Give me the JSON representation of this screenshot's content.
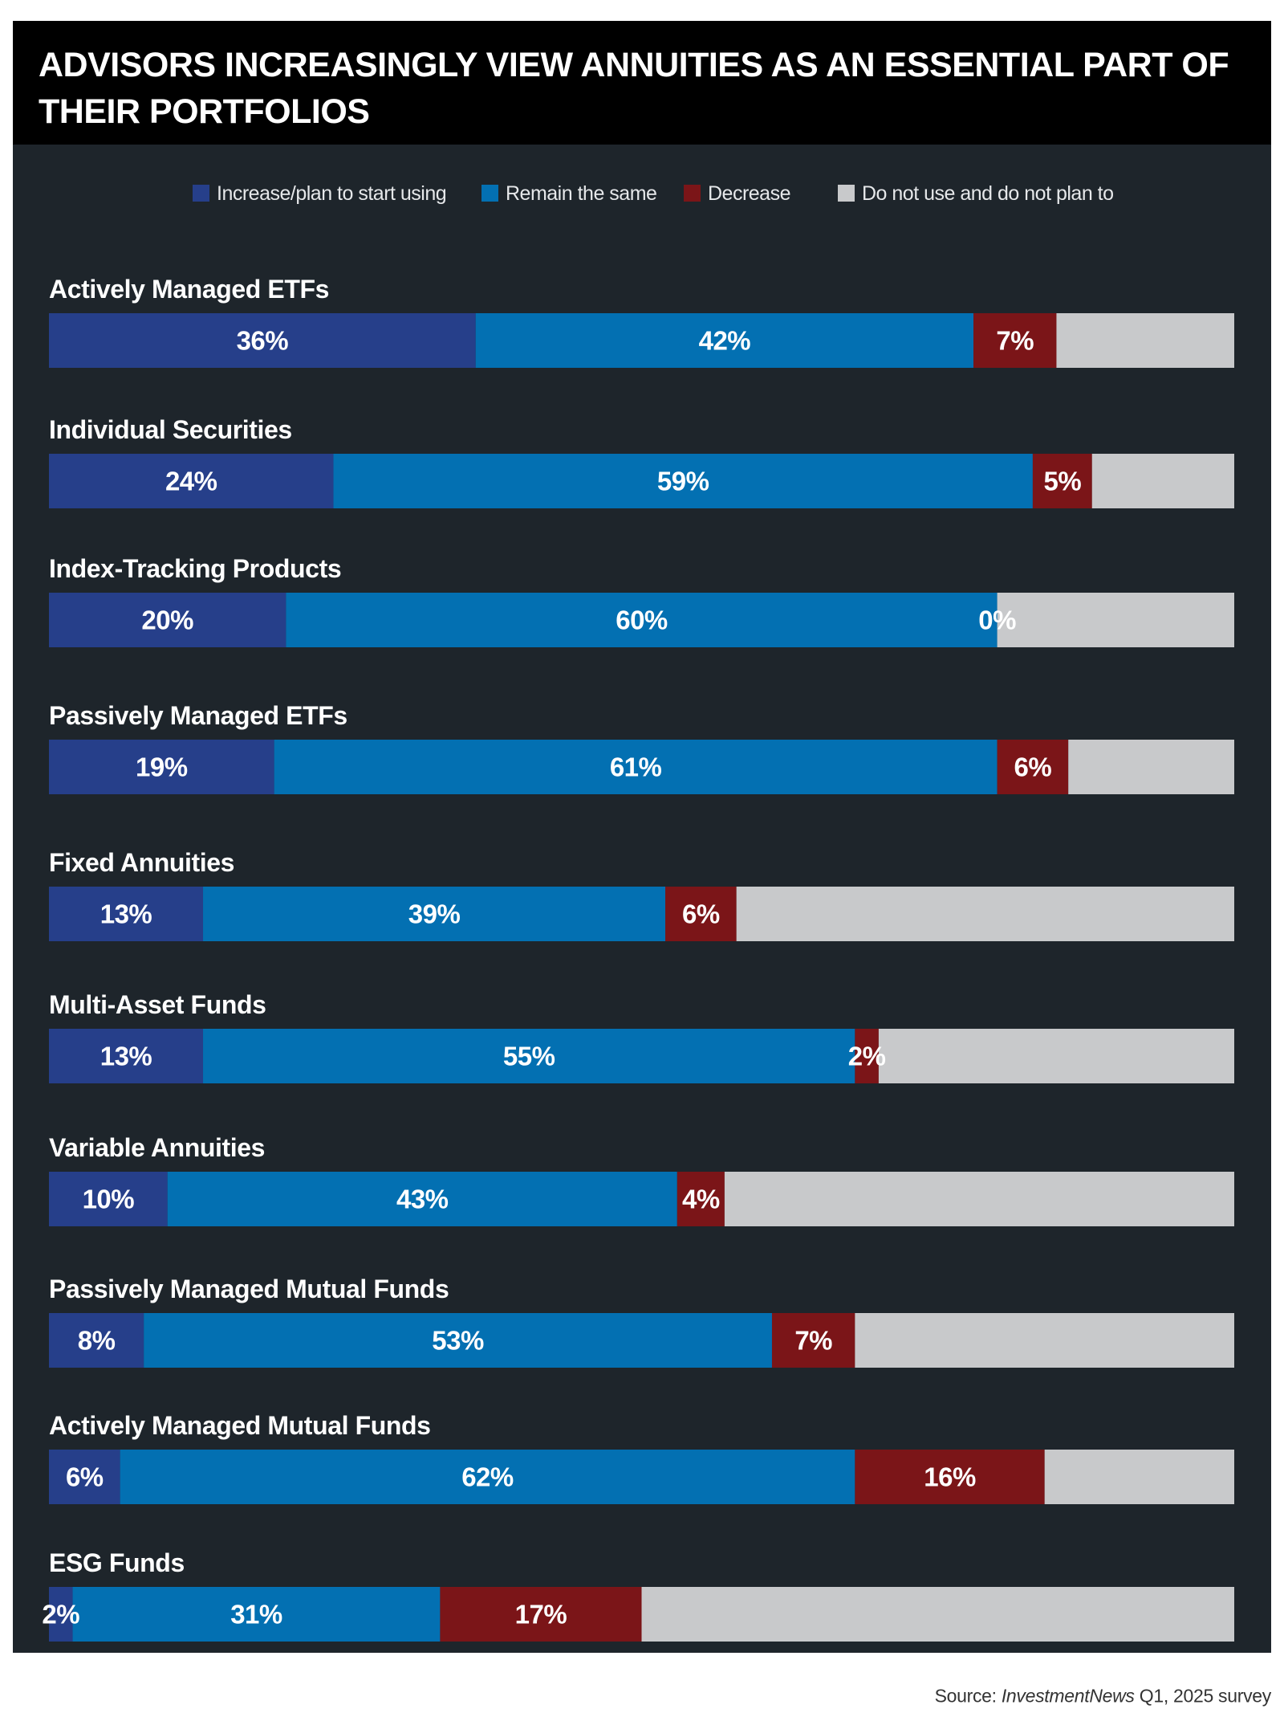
{
  "title": "ADVISORS INCREASINGLY VIEW ANNUITIES AS AN ESSENTIAL PART OF THEIR PORTFOLIOS",
  "source": {
    "prefix": "Source:",
    "publication": "InvestmentNews",
    "suffix": "Q1, 2025 survey"
  },
  "chart_data": {
    "type": "bar",
    "orientation": "horizontal-stacked",
    "title": "ADVISORS INCREASINGLY VIEW ANNUITIES AS AN ESSENTIAL PART OF THEIR PORTFOLIOS",
    "xlim": [
      0,
      100
    ],
    "unit": "%",
    "legend_position": "top",
    "categories": [
      "Actively Managed ETFs",
      "Individual Securities",
      "Index-Tracking Products",
      "Passively Managed ETFs",
      "Fixed Annuities",
      "Multi-Asset Funds",
      "Variable Annuities",
      "Passively Managed Mutual Funds",
      "Actively Managed Mutual Funds",
      "ESG Funds"
    ],
    "series": [
      {
        "name": "Increase/plan to start using",
        "color": "#263f8a",
        "label_color": "#ffffff",
        "show_labels": true,
        "values": [
          36,
          24,
          20,
          19,
          13,
          13,
          10,
          8,
          6,
          2
        ]
      },
      {
        "name": "Remain the same",
        "color": "#0370b2",
        "label_color": "#ffffff",
        "show_labels": true,
        "values": [
          42,
          59,
          60,
          61,
          39,
          55,
          43,
          53,
          62,
          31
        ]
      },
      {
        "name": "Decrease",
        "color": "#7b1518",
        "label_color": "#ffffff",
        "show_labels": true,
        "values": [
          7,
          5,
          0,
          6,
          6,
          2,
          4,
          7,
          16,
          17
        ]
      },
      {
        "name": "Do not use and do not plan to",
        "color": "#c8c9cb",
        "label_color": "#333333",
        "show_labels": false,
        "values": [
          15,
          12,
          20,
          14,
          42,
          30,
          43,
          32,
          16,
          50
        ]
      }
    ]
  }
}
